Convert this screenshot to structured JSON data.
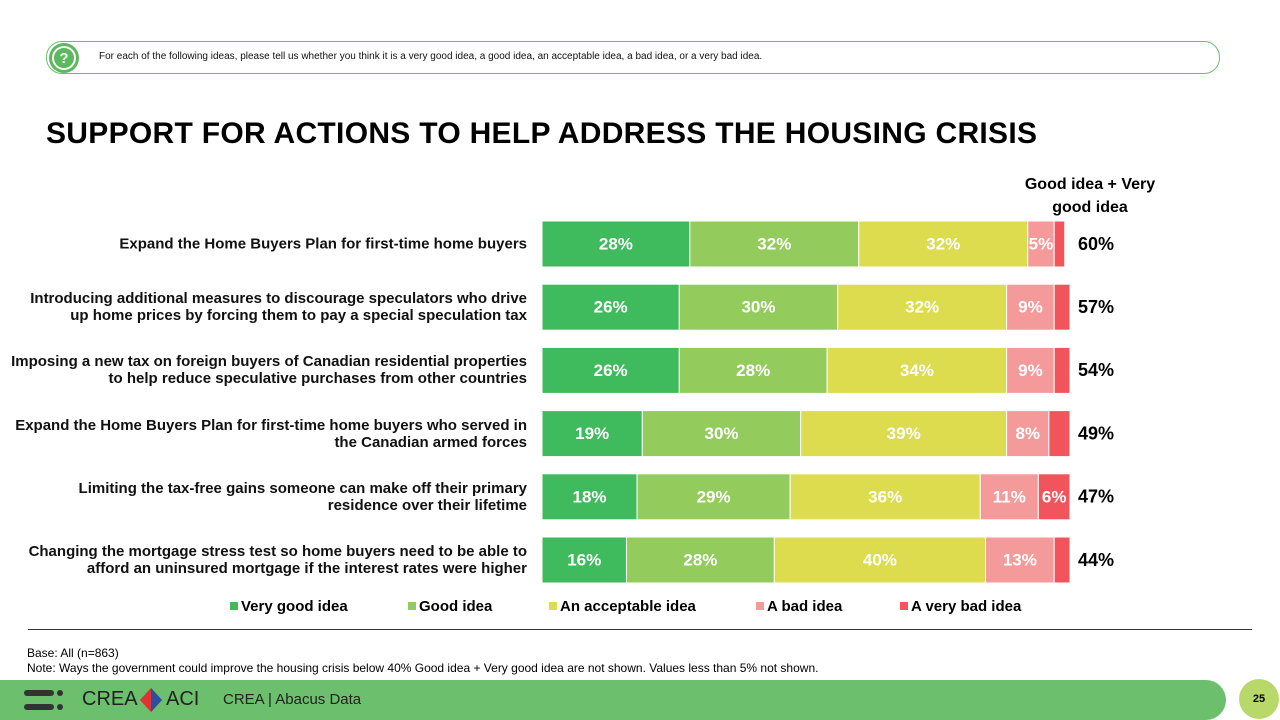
{
  "header": {
    "question": "For each of the following ideas, please tell us whether you think it is a very good idea, a good idea, an acceptable idea, a bad idea, or a very bad idea."
  },
  "chart_data": {
    "type": "stacked-bar-horizontal",
    "title": "SUPPORT FOR ACTIONS TO HELP ADDRESS THE HOUSING CRISIS",
    "categories": [
      "Expand the Home Buyers Plan for first-time home buyers",
      "Introducing additional measures to discourage speculators who drive up home prices by forcing them to pay a special speculation tax",
      "Imposing a new tax on foreign buyers of Canadian residential properties to help reduce speculative purchases from other countries",
      "Expand the Home Buyers Plan for first-time home buyers who served in the Canadian armed forces",
      "Limiting the tax-free gains someone can make off their primary residence over their lifetime",
      "Changing the mortgage stress test so home buyers need to be able to afford an uninsured mortgage if the interest rates were higher"
    ],
    "xlim": [
      0,
      100
    ],
    "series": [
      {
        "name": "Very good idea",
        "color": "#3fba5d",
        "values": [
          28,
          26,
          26,
          19,
          18,
          16
        ],
        "value_labels": [
          "28%",
          "26%",
          "26%",
          "19%",
          "18%",
          "16%"
        ]
      },
      {
        "name": "Good idea",
        "color": "#93cc5d",
        "values": [
          32,
          30,
          28,
          30,
          29,
          28
        ],
        "value_labels": [
          "32%",
          "30%",
          "28%",
          "30%",
          "29%",
          "28%"
        ]
      },
      {
        "name": "An acceptable idea",
        "color": "#dcdc4e",
        "values": [
          32,
          32,
          34,
          39,
          36,
          40
        ],
        "value_labels": [
          "32%",
          "32%",
          "34%",
          "39%",
          "36%",
          "40%"
        ]
      },
      {
        "name": "A bad idea",
        "color": "#f59a9b",
        "values": [
          5,
          9,
          9,
          8,
          11,
          13
        ],
        "value_labels": [
          "5%",
          "9%",
          "9%",
          "8%",
          "11%",
          "13%"
        ]
      },
      {
        "name": "A very bad idea",
        "color": "#f1545b",
        "values": [
          2,
          3,
          3,
          4,
          6,
          3
        ],
        "value_labels": [
          null,
          null,
          null,
          null,
          "6%",
          null
        ]
      }
    ],
    "totals": {
      "title": "Good idea + Very good idea",
      "values": [
        60,
        57,
        54,
        49,
        47,
        44
      ],
      "value_labels": [
        "60%",
        "57%",
        "54%",
        "49%",
        "47%",
        "44%"
      ]
    }
  },
  "footer": {
    "base": "Base: All (n=863)",
    "note": "Note: Ways the government could improve the housing crisis below 40% Good idea + Very good idea are not shown. Values less than 5% not shown.",
    "logo_left": "CREA",
    "logo_right": "ACI",
    "source": "CREA | Abacus Data",
    "page": "25"
  }
}
